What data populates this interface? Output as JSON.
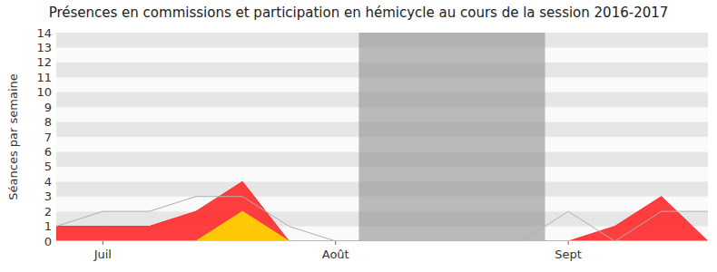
{
  "chart_data": {
    "type": "line",
    "title": "Présences en commissions et participation en hémicycle au cours de la session 2016-2017",
    "y_label": "Séances par semaine",
    "categories": [
      null,
      "Juil",
      null,
      null,
      null,
      null,
      "Août",
      null,
      null,
      null,
      null,
      "Sept",
      null,
      null,
      null
    ],
    "series": [
      {
        "type": "area",
        "color": "#ff2a2a",
        "values": [
          1,
          1,
          1,
          2,
          4,
          0,
          0,
          0,
          0,
          0,
          0,
          0,
          1,
          3,
          0
        ]
      },
      {
        "type": "area",
        "color": "#ffd700",
        "values": [
          0,
          0,
          0,
          0,
          2,
          0,
          0,
          0,
          0,
          0,
          0,
          0,
          0,
          0,
          0
        ]
      },
      {
        "type": "line",
        "color": "#b0b0b0",
        "values": [
          1,
          2,
          2,
          3,
          3,
          1,
          0,
          0,
          0,
          0,
          0,
          2,
          0,
          2,
          2
        ]
      }
    ],
    "shaded": [
      6.5,
      10.5
    ],
    "ylim": [
      0,
      14
    ],
    "yticks": [
      0,
      1,
      2,
      3,
      4,
      5,
      6,
      7,
      8,
      9,
      10,
      11,
      12,
      13,
      14
    ],
    "grid": true
  }
}
